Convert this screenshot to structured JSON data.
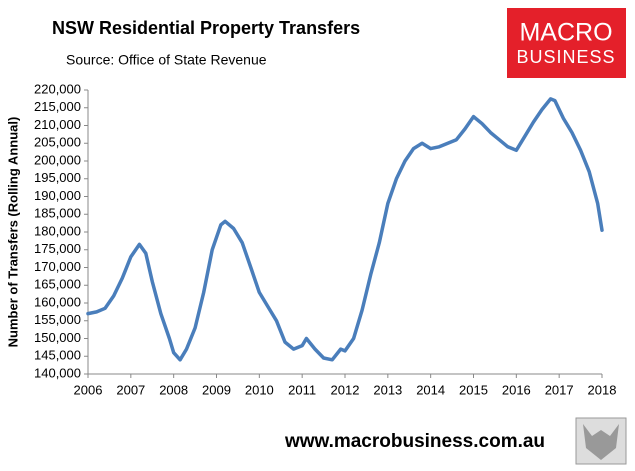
{
  "chart_data": {
    "type": "line",
    "title": "NSW Residential Property Transfers",
    "subtitle": "Source: Office of State Revenue",
    "ylabel": "Number of Transfers (Rolling Annual)",
    "logo": [
      "MACRO",
      "BUSINESS"
    ],
    "footer": "www.macrobusiness.com.au",
    "color": "#4a7ebb",
    "x": [
      2006.0,
      2006.2,
      2006.4,
      2006.6,
      2006.8,
      2007.0,
      2007.2,
      2007.35,
      2007.5,
      2007.7,
      2007.9,
      2008.0,
      2008.15,
      2008.3,
      2008.5,
      2008.7,
      2008.9,
      2009.1,
      2009.2,
      2009.4,
      2009.6,
      2009.8,
      2010.0,
      2010.2,
      2010.4,
      2010.6,
      2010.8,
      2011.0,
      2011.1,
      2011.3,
      2011.5,
      2011.7,
      2011.9,
      2012.0,
      2012.2,
      2012.4,
      2012.6,
      2012.8,
      2013.0,
      2013.2,
      2013.4,
      2013.6,
      2013.8,
      2014.0,
      2014.2,
      2014.4,
      2014.6,
      2014.8,
      2015.0,
      2015.2,
      2015.4,
      2015.6,
      2015.8,
      2016.0,
      2016.2,
      2016.4,
      2016.6,
      2016.8,
      2016.9,
      2017.1,
      2017.3,
      2017.5,
      2017.7,
      2017.9,
      2018.0
    ],
    "values": [
      157000,
      157500,
      158500,
      162000,
      167000,
      173000,
      176500,
      174000,
      166000,
      157000,
      150000,
      146000,
      144000,
      147000,
      153000,
      163000,
      175000,
      182000,
      183000,
      181000,
      177000,
      170000,
      163000,
      159000,
      155000,
      149000,
      147000,
      148000,
      150000,
      147000,
      144500,
      144000,
      147000,
      146500,
      150000,
      158000,
      168000,
      177000,
      188000,
      195000,
      200000,
      203500,
      205000,
      203500,
      204000,
      205000,
      206000,
      209000,
      212500,
      210500,
      208000,
      206000,
      204000,
      203000,
      207000,
      211000,
      214500,
      217500,
      217000,
      212000,
      208000,
      203000,
      197000,
      188000,
      180500
    ],
    "xlim": [
      2006,
      2018
    ],
    "xticks": [
      2006,
      2007,
      2008,
      2009,
      2010,
      2011,
      2012,
      2013,
      2014,
      2015,
      2016,
      2017,
      2018
    ],
    "ylim": [
      140000,
      220000
    ],
    "yticks": [
      {
        "value": 140000,
        "label": "140,000"
      },
      {
        "value": 145000,
        "label": "145,000"
      },
      {
        "value": 150000,
        "label": "150,000"
      },
      {
        "value": 155000,
        "label": "155,000"
      },
      {
        "value": 160000,
        "label": "160,000"
      },
      {
        "value": 165000,
        "label": "165,000"
      },
      {
        "value": 170000,
        "label": "170,000"
      },
      {
        "value": 175000,
        "label": "175,000"
      },
      {
        "value": 180000,
        "label": "180,000"
      },
      {
        "value": 185000,
        "label": "185,000"
      },
      {
        "value": 190000,
        "label": "190,000"
      },
      {
        "value": 195000,
        "label": "195,000"
      },
      {
        "value": 200000,
        "label": "200,000"
      },
      {
        "value": 205000,
        "label": "205,000"
      },
      {
        "value": 210000,
        "label": "210,000"
      },
      {
        "value": 215000,
        "label": "215,000"
      },
      {
        "value": 220000,
        "label": "220,000"
      }
    ]
  }
}
